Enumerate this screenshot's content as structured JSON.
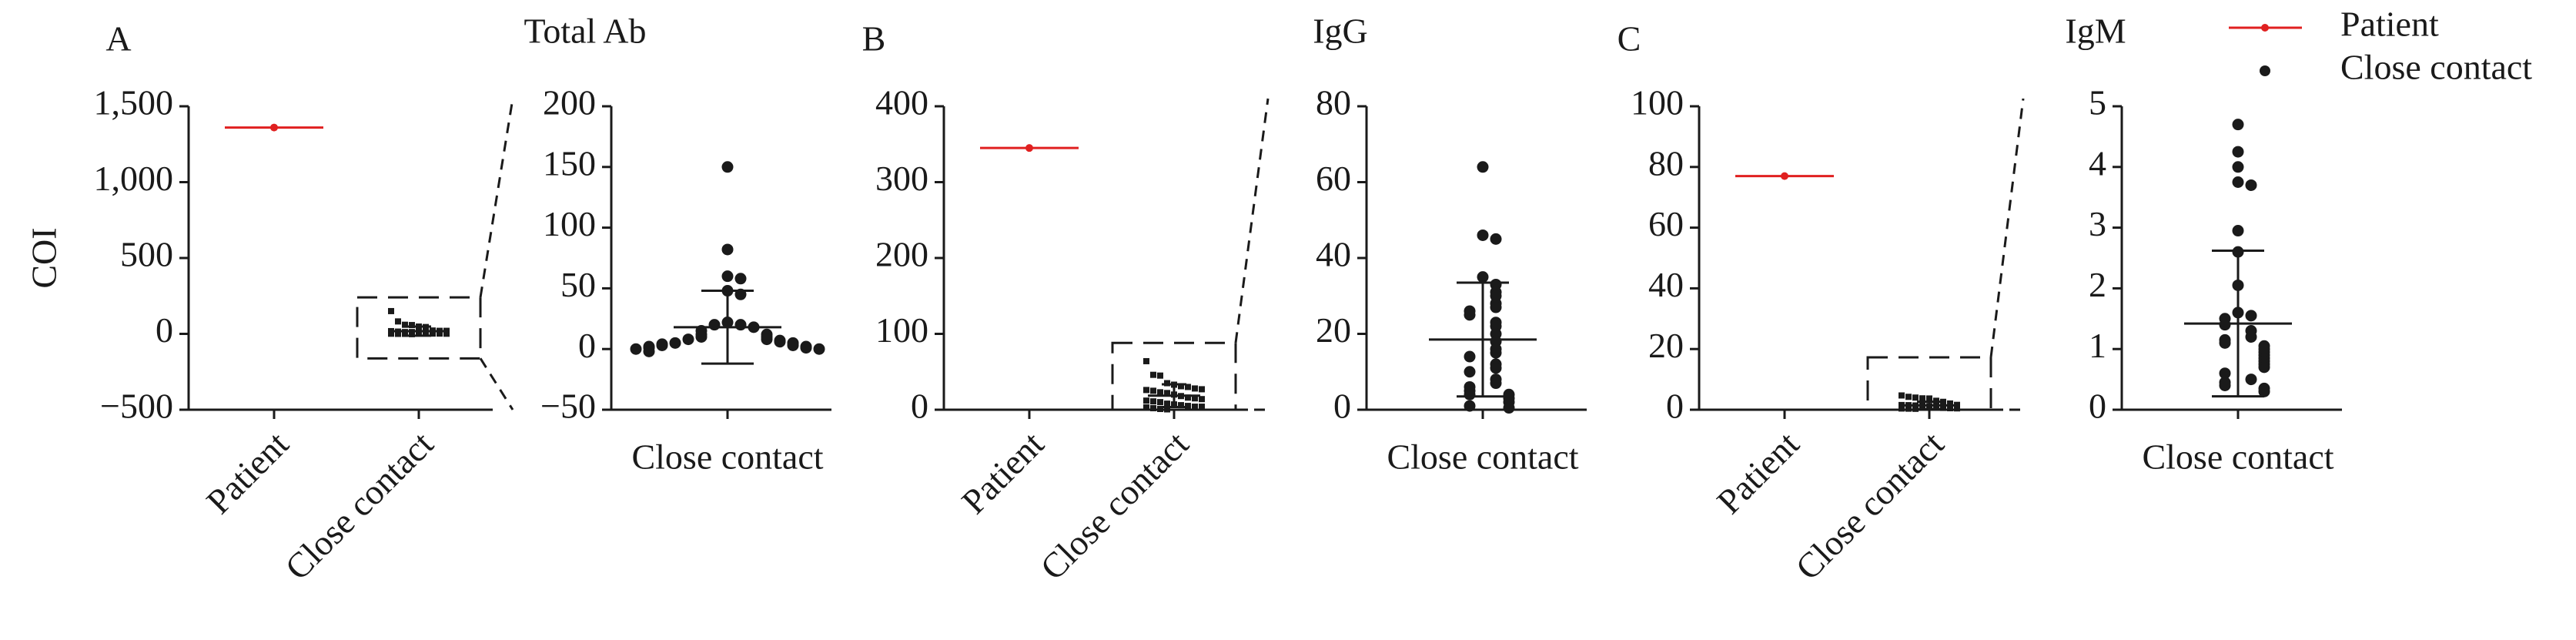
{
  "legend": {
    "items": [
      {
        "name": "Patient",
        "color": "#e02020"
      },
      {
        "name": "Close contact",
        "color": "#1a1a1a"
      }
    ],
    "position": "upper right"
  },
  "chart_data": [
    {
      "type": "scatter",
      "panel": "A",
      "title": "Total Ab",
      "y_label": "COI",
      "categories": [
        "Patient",
        "Close contact"
      ],
      "patient": 1360,
      "close_contact": [
        150,
        82,
        60,
        58,
        48,
        45,
        22,
        20,
        20,
        18,
        15,
        12,
        12,
        10,
        10,
        8,
        8,
        7,
        6,
        5,
        5,
        4,
        3,
        3,
        2,
        2,
        1,
        1,
        0,
        0,
        -2
      ],
      "mean": 18,
      "sd": 30,
      "ylim": [
        -500,
        1500
      ],
      "yticks": [
        {
          "value": -500,
          "label": "−500"
        },
        0,
        500,
        {
          "value": 1000,
          "label": "1,000"
        },
        {
          "value": 1500,
          "label": "1,500"
        }
      ],
      "inset_ylim": [
        -50,
        200
      ],
      "inset_yticks": [
        {
          "value": -50,
          "label": "−50"
        },
        0,
        50,
        100,
        150,
        200
      ]
    },
    {
      "type": "scatter",
      "panel": "B",
      "title": "IgG",
      "categories": [
        "Patient",
        "Close contact"
      ],
      "patient": 345,
      "close_contact": [
        64,
        46,
        45,
        35,
        33,
        31,
        30,
        28,
        27,
        26,
        25,
        23,
        22,
        20,
        18,
        16,
        15,
        14,
        12,
        11,
        10,
        8,
        7,
        6,
        5,
        4,
        4,
        3,
        2,
        1,
        0.5
      ],
      "mean": 18.5,
      "sd": 15,
      "ylim": [
        0,
        400
      ],
      "yticks": [
        0,
        100,
        200,
        300,
        400
      ],
      "inset_ylim": [
        0,
        80
      ],
      "inset_yticks": [
        0,
        20,
        40,
        60,
        80
      ]
    },
    {
      "type": "scatter",
      "panel": "C",
      "title": "IgM",
      "categories": [
        "Patient",
        "Close contact"
      ],
      "patient": 77,
      "close_contact": [
        4.7,
        4.25,
        4.0,
        3.75,
        3.7,
        2.95,
        2.6,
        2.05,
        1.6,
        1.55,
        1.5,
        1.4,
        1.3,
        1.2,
        1.15,
        1.1,
        1.05,
        1.0,
        0.95,
        0.9,
        0.85,
        0.8,
        0.75,
        0.7,
        0.6,
        0.5,
        0.45,
        0.4,
        0.35,
        0.3
      ],
      "mean": 1.42,
      "sd": 1.2,
      "ylim": [
        0,
        100
      ],
      "yticks": [
        0,
        20,
        40,
        60,
        80,
        100
      ],
      "inset_ylim": [
        0,
        5
      ],
      "inset_yticks": [
        0,
        1,
        2,
        3,
        4,
        5
      ]
    }
  ]
}
